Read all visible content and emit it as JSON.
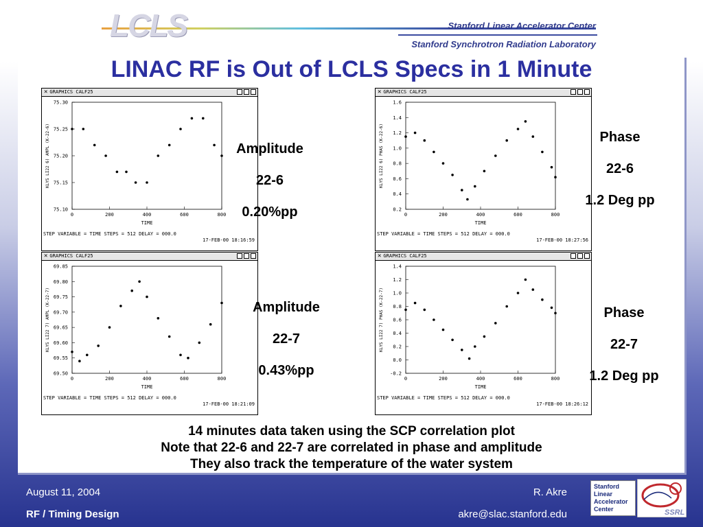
{
  "header": {
    "logo_text": "LCLS",
    "org_line_1": "Stanford Linear Accelerator Center",
    "org_line_2": "Stanford Synchrotron Radiation Laboratory"
  },
  "title": "LINAC RF is Out of LCLS Specs in 1 Minute",
  "window_title": "GRAPHICS CALF25",
  "footer_text": "STEP VARIABLE = TIME   STEPS = 512 DELAY =   000.0",
  "x_axis_label": "TIME",
  "plots": [
    {
      "ylabel": "KLYS LI22 6) AMPL (K-22-6)",
      "timestamp": "17-FEB-00 18:16:59"
    },
    {
      "ylabel": "KLYS LI22 6) PHAS (K-22-6)",
      "timestamp": "17-FEB-00 18:27:56"
    },
    {
      "ylabel": "KLYS LI22 7) AMPL (K-22-7)",
      "timestamp": "17-FEB-00 18:21:09"
    },
    {
      "ylabel": "KLYS LI22 7) PHAS (K-22-7)",
      "timestamp": "17-FEB-00 18:26:12"
    }
  ],
  "labels": {
    "amp1": [
      "Amplitude",
      "22-6",
      "0.20%pp"
    ],
    "phase1": [
      "Phase",
      "22-6",
      "1.2 Deg pp"
    ],
    "amp2": [
      "Amplitude",
      "22-7",
      "0.43%pp"
    ],
    "phase2": [
      "Phase",
      "22-7",
      "1.2 Deg pp"
    ]
  },
  "notes": [
    "14 minutes data taken using the SCP correlation plot",
    "Note that 22-6 and 22-7 are correlated in phase and amplitude",
    "They also track the temperature of the water system"
  ],
  "footer": {
    "date": "August 11, 2004",
    "topic": "RF / Timing Design",
    "author": "R. Akre",
    "email": "akre@slac.stanford.edu"
  },
  "badge": {
    "line1": "Stanford",
    "line2": "Linear",
    "line3": "Accelerator",
    "line4": "Center",
    "ssrl": "SSRL"
  },
  "colors": {
    "title": "#2b2fa0",
    "footer_text": "#ffffff",
    "background_bottom": "#27338f"
  },
  "chart_data": [
    {
      "type": "scatter",
      "xlabel": "TIME",
      "ylabel": "KLYS LI22 6) AMPL (K-22-6)",
      "xlim": [
        0,
        800
      ],
      "ylim": [
        75.1,
        75.3
      ],
      "xticks": [
        0,
        200,
        400,
        600,
        800
      ],
      "yticks": [
        "75.10",
        "75.15",
        "75.20",
        "75.25",
        "75.30"
      ],
      "x": [
        0,
        60,
        120,
        180,
        240,
        290,
        340,
        400,
        460,
        520,
        580,
        640,
        700,
        760,
        800
      ],
      "y": [
        75.25,
        75.25,
        75.22,
        75.2,
        75.17,
        75.17,
        75.15,
        75.15,
        75.2,
        75.22,
        75.25,
        75.27,
        75.27,
        75.22,
        75.2
      ]
    },
    {
      "type": "scatter",
      "xlabel": "TIME",
      "ylabel": "KLYS LI22 6) PHAS (K-22-6)",
      "xlim": [
        0,
        800
      ],
      "ylim": [
        0.2,
        1.6
      ],
      "xticks": [
        0,
        200,
        400,
        600,
        800
      ],
      "yticks": [
        "0.2",
        "0.4",
        "0.6",
        "0.8",
        "1.0",
        "1.2",
        "1.4",
        "1.6"
      ],
      "x": [
        0,
        50,
        100,
        150,
        200,
        250,
        300,
        330,
        370,
        420,
        480,
        540,
        600,
        640,
        680,
        730,
        780,
        800
      ],
      "y": [
        1.15,
        1.2,
        1.1,
        0.95,
        0.8,
        0.65,
        0.45,
        0.33,
        0.5,
        0.7,
        0.9,
        1.1,
        1.25,
        1.35,
        1.15,
        0.95,
        0.75,
        0.62
      ]
    },
    {
      "type": "scatter",
      "xlabel": "TIME",
      "ylabel": "KLYS LI22 7) AMPL (K-22-7)",
      "xlim": [
        0,
        800
      ],
      "ylim": [
        69.5,
        69.85
      ],
      "xticks": [
        0,
        200,
        400,
        600,
        800
      ],
      "yticks": [
        "69.50",
        "69.55",
        "69.60",
        "69.65",
        "69.70",
        "69.75",
        "69.80",
        "69.85"
      ],
      "x": [
        0,
        40,
        80,
        140,
        200,
        260,
        320,
        360,
        400,
        460,
        520,
        580,
        620,
        680,
        740,
        800
      ],
      "y": [
        69.57,
        69.54,
        69.56,
        69.59,
        69.65,
        69.72,
        69.77,
        69.8,
        69.75,
        69.68,
        69.62,
        69.56,
        69.55,
        69.6,
        69.66,
        69.73
      ]
    },
    {
      "type": "scatter",
      "xlabel": "TIME",
      "ylabel": "KLYS LI22 7) PHAS (K-22-7)",
      "xlim": [
        0,
        800
      ],
      "ylim": [
        -0.2,
        1.4
      ],
      "xticks": [
        0,
        200,
        400,
        600,
        800
      ],
      "yticks": [
        "-0.2",
        "0.0",
        "0.2",
        "0.4",
        "0.6",
        "0.8",
        "1.0",
        "1.2",
        "1.4"
      ],
      "x": [
        0,
        50,
        100,
        150,
        200,
        250,
        300,
        340,
        370,
        420,
        480,
        540,
        600,
        640,
        680,
        730,
        780,
        800
      ],
      "y": [
        0.75,
        0.85,
        0.75,
        0.6,
        0.45,
        0.3,
        0.15,
        0.02,
        0.2,
        0.35,
        0.55,
        0.8,
        1.0,
        1.2,
        1.05,
        0.9,
        0.78,
        0.7
      ]
    }
  ]
}
